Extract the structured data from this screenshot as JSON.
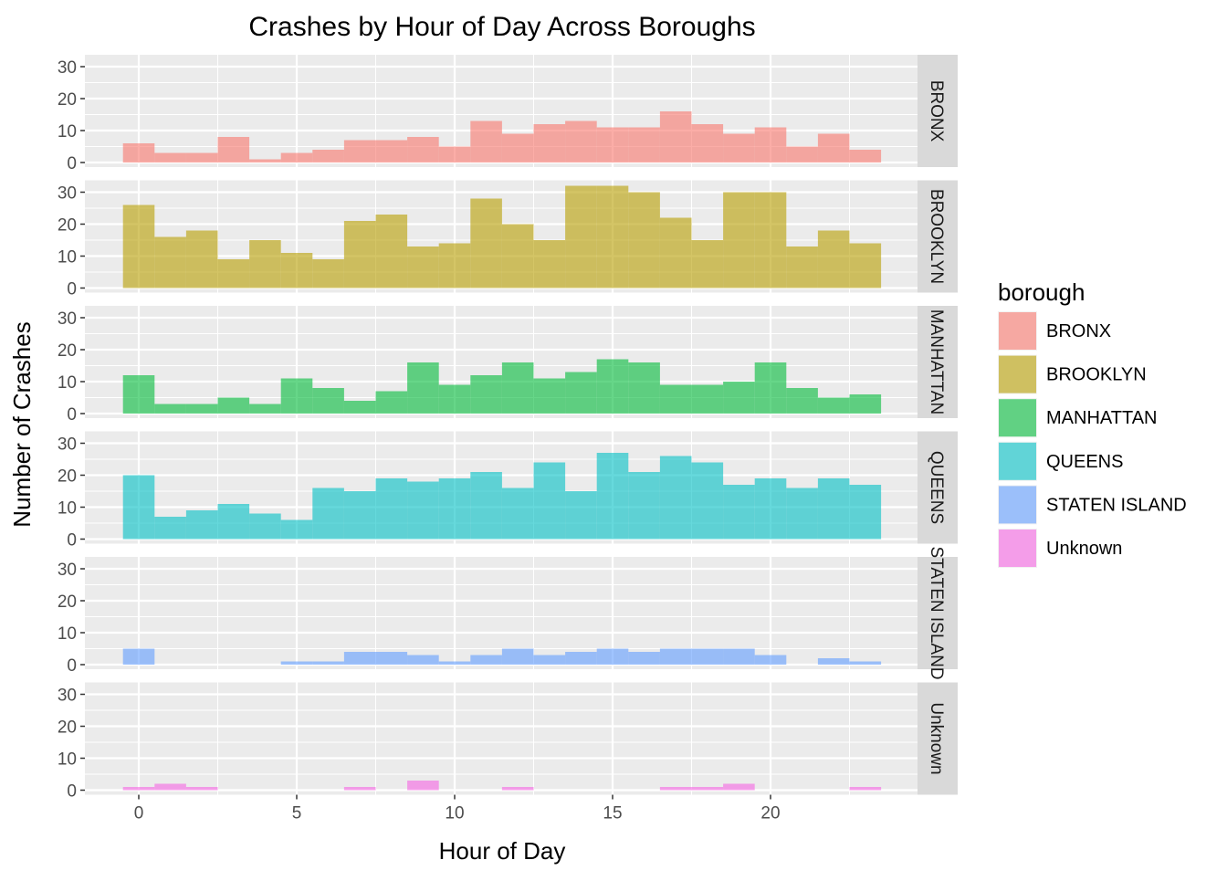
{
  "chart_data": {
    "type": "bar",
    "subtype": "faceted-histogram",
    "title": "Crashes by Hour of Day Across Boroughs",
    "xlabel": "Hour of Day",
    "ylabel": "Number of Crashes",
    "xlim": [
      -1.7,
      24.7
    ],
    "ylim": [
      0,
      33.5
    ],
    "x_ticks": [
      0,
      5,
      10,
      15,
      20
    ],
    "y_ticks": [
      0,
      10,
      20,
      30
    ],
    "grid": true,
    "legend": {
      "title": "borough",
      "placement": "right"
    },
    "x": [
      0,
      1,
      2,
      3,
      4,
      5,
      6,
      7,
      8,
      9,
      10,
      11,
      12,
      13,
      14,
      15,
      16,
      17,
      18,
      19,
      20,
      21,
      22,
      23
    ],
    "series": [
      {
        "name": "BRONX",
        "color": "#F8766D",
        "values": [
          6,
          3,
          3,
          8,
          1,
          3,
          4,
          7,
          7,
          8,
          5,
          13,
          9,
          12,
          13,
          11,
          11,
          16,
          12,
          9,
          11,
          5,
          9,
          4
        ]
      },
      {
        "name": "BROOKLYN",
        "color": "#B79F00",
        "values": [
          26,
          16,
          18,
          9,
          15,
          11,
          9,
          21,
          23,
          13,
          14,
          28,
          20,
          15,
          32,
          32,
          30,
          22,
          15,
          30,
          30,
          13,
          18,
          14
        ]
      },
      {
        "name": "MANHATTAN",
        "color": "#00BA38",
        "values": [
          12,
          3,
          3,
          5,
          3,
          11,
          8,
          4,
          7,
          16,
          9,
          12,
          16,
          11,
          13,
          17,
          16,
          9,
          9,
          10,
          16,
          8,
          5,
          6
        ]
      },
      {
        "name": "QUEENS",
        "color": "#00BFC4",
        "values": [
          20,
          7,
          9,
          11,
          8,
          6,
          16,
          15,
          19,
          18,
          19,
          21,
          16,
          24,
          15,
          27,
          21,
          26,
          24,
          17,
          19,
          16,
          19,
          17
        ]
      },
      {
        "name": "STATEN ISLAND",
        "color": "#619CFF",
        "values": [
          5,
          0,
          0,
          0,
          0,
          1,
          1,
          4,
          4,
          3,
          1,
          3,
          5,
          3,
          4,
          5,
          4,
          5,
          5,
          5,
          3,
          0,
          2,
          1
        ]
      },
      {
        "name": "Unknown",
        "color": "#F564E3",
        "values": [
          1,
          2,
          1,
          0,
          0,
          0,
          0,
          1,
          0,
          3,
          0,
          0,
          1,
          0,
          0,
          0,
          0,
          1,
          1,
          2,
          0,
          0,
          0,
          1
        ]
      }
    ]
  }
}
